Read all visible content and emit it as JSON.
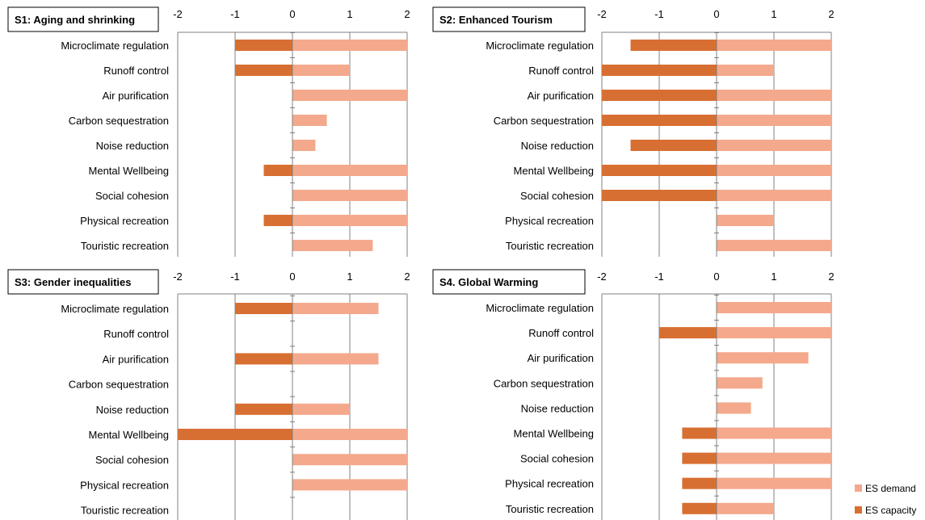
{
  "colors": {
    "demand": "#f4a98c",
    "capacity": "#d86f32",
    "axis": "#808080",
    "grid": "#808080"
  },
  "legend": {
    "demand_label": "ES demand",
    "capacity_label": "ES capacity",
    "placement": "bottom-right"
  },
  "categories": [
    "Microclimate regulation",
    "Runoff control",
    "Air purification",
    "Carbon sequestration",
    "Noise reduction",
    "Mental Wellbeing",
    "Social cohesion",
    "Physical recreation",
    "Touristic recreation"
  ],
  "chart_data": [
    {
      "type": "bar",
      "title": "S1: Aging and shrinking",
      "xlim": [
        -2,
        2
      ],
      "xticks": [
        -2,
        -1,
        0,
        1,
        2
      ],
      "categories": [
        "Microclimate regulation",
        "Runoff control",
        "Air purification",
        "Carbon sequestration",
        "Noise reduction",
        "Mental Wellbeing",
        "Social cohesion",
        "Physical recreation",
        "Touristic recreation"
      ],
      "series": [
        {
          "name": "ES demand",
          "values": [
            2,
            1,
            2,
            0.6,
            0.4,
            2,
            2,
            2,
            1.4
          ]
        },
        {
          "name": "ES capacity",
          "values": [
            -1,
            -1,
            0,
            0,
            0,
            -0.5,
            0,
            -0.5,
            0
          ]
        }
      ]
    },
    {
      "type": "bar",
      "title": "S2: Enhanced Tourism",
      "xlim": [
        -2,
        2
      ],
      "xticks": [
        -2,
        -1,
        0,
        1,
        2
      ],
      "categories": [
        "Microclimate regulation",
        "Runoff control",
        "Air purification",
        "Carbon sequestration",
        "Noise reduction",
        "Mental Wellbeing",
        "Social cohesion",
        "Physical recreation",
        "Touristic recreation"
      ],
      "series": [
        {
          "name": "ES demand",
          "values": [
            2,
            1,
            2,
            2,
            2,
            2,
            2,
            1,
            2
          ]
        },
        {
          "name": "ES capacity",
          "values": [
            -1.5,
            -2,
            -2,
            -2,
            -1.5,
            -2,
            -2,
            0,
            0
          ]
        }
      ]
    },
    {
      "type": "bar",
      "title": "S3: Gender inequalities",
      "xlim": [
        -2,
        2
      ],
      "xticks": [
        -2,
        -1,
        0,
        1,
        2
      ],
      "categories": [
        "Microclimate regulation",
        "Runoff control",
        "Air purification",
        "Carbon sequestration",
        "Noise reduction",
        "Mental Wellbeing",
        "Social cohesion",
        "Physical recreation",
        "Touristic recreation"
      ],
      "series": [
        {
          "name": "ES demand",
          "values": [
            1.5,
            0,
            1.5,
            0,
            1,
            2,
            2,
            2,
            0
          ]
        },
        {
          "name": "ES capacity",
          "values": [
            -1,
            0,
            -1,
            0,
            -1,
            -2,
            0,
            0,
            0
          ]
        }
      ]
    },
    {
      "type": "bar",
      "title": "S4. Global Warming",
      "xlim": [
        -2,
        2
      ],
      "xticks": [
        -2,
        -1,
        0,
        1,
        2
      ],
      "categories": [
        "Microclimate regulation",
        "Runoff control",
        "Air purification",
        "Carbon sequestration",
        "Noise reduction",
        "Mental Wellbeing",
        "Social cohesion",
        "Physical recreation",
        "Touristic recreation"
      ],
      "series": [
        {
          "name": "ES demand",
          "values": [
            2,
            2,
            1.6,
            0.8,
            0.6,
            2,
            2,
            2,
            1
          ]
        },
        {
          "name": "ES capacity",
          "values": [
            0,
            -1,
            0,
            0,
            0,
            -0.6,
            -0.6,
            -0.6,
            -0.6
          ]
        }
      ]
    }
  ]
}
